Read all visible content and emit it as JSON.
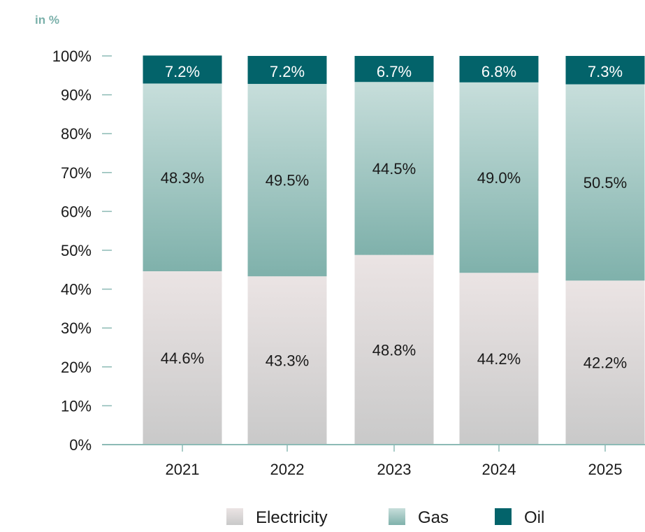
{
  "chart_data": {
    "type": "bar",
    "stacked": true,
    "unit_label": "in %",
    "categories": [
      "2021",
      "2022",
      "2023",
      "2024",
      "2025"
    ],
    "series": [
      {
        "name": "Electricity",
        "values": [
          44.6,
          43.3,
          48.8,
          44.2,
          42.2
        ],
        "labels": [
          "44.6%",
          "43.3%",
          "48.8%",
          "44.2%",
          "42.2%"
        ]
      },
      {
        "name": "Gas",
        "values": [
          48.3,
          49.5,
          44.5,
          49.0,
          50.5
        ],
        "labels": [
          "48.3%",
          "49.5%",
          "44.5%",
          "49.0%",
          "50.5%"
        ]
      },
      {
        "name": "Oil",
        "values": [
          7.2,
          7.2,
          6.7,
          6.8,
          7.3
        ],
        "labels": [
          "7.2%",
          "7.2%",
          "6.7%",
          "6.8%",
          "7.3%"
        ]
      }
    ],
    "ylim": [
      0,
      100
    ],
    "yticks": [
      "0%",
      "10%",
      "20%",
      "30%",
      "40%",
      "50%",
      "60%",
      "70%",
      "80%",
      "90%",
      "100%"
    ],
    "grid": false,
    "legend_position": "bottom",
    "colors": {
      "electricity_top": "#ebe4e4",
      "electricity_bottom": "#c9c9c9",
      "gas_top": "#c7dedb",
      "gas_bottom": "#7fb1ab",
      "oil": "#03636a",
      "axis": "#8cbab5",
      "unit_label": "#7ab0aa",
      "oil_label": "#ffffff",
      "label": "#1a1a1a"
    }
  }
}
